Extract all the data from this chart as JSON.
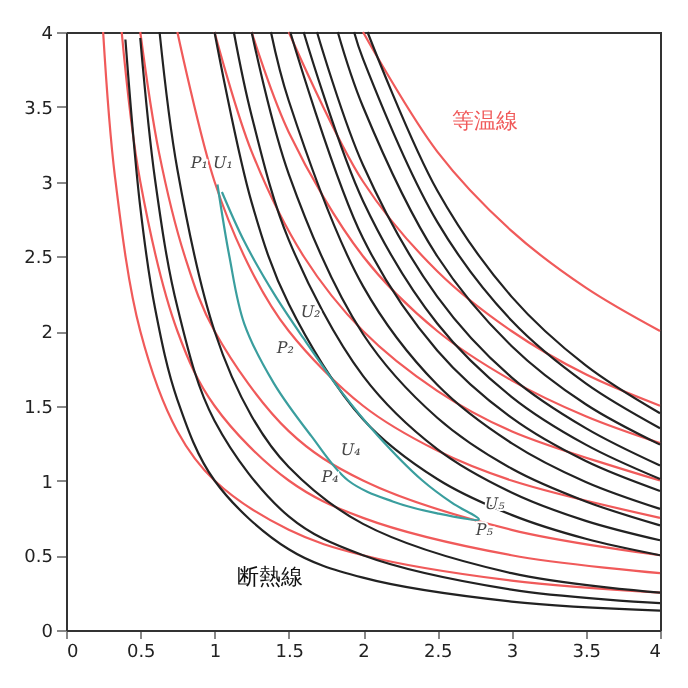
{
  "chart_data": {
    "type": "line",
    "xlim": [
      0,
      4
    ],
    "ylim": [
      0,
      4
    ],
    "xticks": [
      0,
      0.5,
      1,
      1.5,
      2,
      2.5,
      3,
      3.5,
      4
    ],
    "yticks": [
      0,
      0.5,
      1,
      1.5,
      2,
      2.5,
      3,
      3.5,
      4
    ],
    "series": [
      {
        "color": "#f05a5a",
        "x": [
          0.25,
          0.33,
          0.5,
          0.75,
          1,
          1.5,
          2,
          3,
          4
        ],
        "values": [
          4,
          3.03,
          2,
          1.33,
          1,
          0.67,
          0.5,
          0.33,
          0.25
        ]
      },
      {
        "color": "#f05a5a",
        "x": [
          0.375,
          0.5,
          0.75,
          1,
          1.5,
          2,
          3,
          4
        ],
        "values": [
          4,
          3,
          2,
          1.5,
          1,
          0.75,
          0.5,
          0.38
        ]
      },
      {
        "color": "#f05a5a",
        "x": [
          0.5,
          0.625,
          0.8,
          1,
          1.5,
          2,
          3,
          4
        ],
        "values": [
          4,
          3.2,
          2.5,
          2,
          1.33,
          1,
          0.67,
          0.5
        ]
      },
      {
        "color": "#f05a5a",
        "x": [
          0.75,
          1,
          1.25,
          1.5,
          2,
          2.5,
          3,
          4
        ],
        "values": [
          4,
          3,
          2.4,
          2,
          1.5,
          1.2,
          1,
          0.75
        ]
      },
      {
        "color": "#f05a5a",
        "x": [
          1,
          1.25,
          1.6,
          2,
          2.5,
          3,
          4
        ],
        "values": [
          4,
          3.2,
          2.5,
          2,
          1.6,
          1.33,
          1
        ]
      },
      {
        "color": "#f05a5a",
        "x": [
          1.25,
          1.5,
          2,
          2.5,
          3,
          3.5,
          4
        ],
        "values": [
          4,
          3.33,
          2.5,
          2,
          1.67,
          1.43,
          1.25
        ]
      },
      {
        "color": "#f05a5a",
        "x": [
          1.5,
          2,
          2.5,
          3,
          3.5,
          4
        ],
        "values": [
          4,
          3,
          2.4,
          2,
          1.71,
          1.5
        ]
      },
      {
        "color": "#f05a5a",
        "x": [
          2,
          2.5,
          3,
          3.5,
          4
        ],
        "values": [
          4,
          3.2,
          2.67,
          2.29,
          2
        ]
      },
      {
        "color": "#222222",
        "x": [
          0.4,
          0.5,
          0.6,
          0.75,
          1,
          1.5,
          2,
          3,
          4
        ],
        "values": [
          3.95,
          2.83,
          2.15,
          1.54,
          1,
          0.54,
          0.35,
          0.19,
          0.13
        ]
      },
      {
        "color": "#222222",
        "x": [
          0.5,
          0.6,
          0.75,
          1,
          1.5,
          2,
          3,
          4
        ],
        "values": [
          3.96,
          3.01,
          2.16,
          1.4,
          0.76,
          0.5,
          0.27,
          0.18
        ]
      },
      {
        "color": "#222222",
        "x": [
          0.63,
          0.75,
          1,
          1.25,
          1.5,
          2,
          3,
          4
        ],
        "values": [
          4,
          3.08,
          2,
          1.43,
          1.09,
          0.71,
          0.38,
          0.25
        ]
      },
      {
        "color": "#222222",
        "x": [
          1,
          1.25,
          1.5,
          2,
          2.5,
          3,
          3.5,
          4
        ],
        "values": [
          4,
          2.86,
          2.18,
          1.41,
          1.01,
          0.77,
          0.61,
          0.5
        ]
      },
      {
        "color": "#222222",
        "x": [
          1.13,
          1.25,
          1.5,
          2,
          2.5,
          3,
          3.5,
          4
        ],
        "values": [
          4,
          3.44,
          2.61,
          1.7,
          1.21,
          0.92,
          0.73,
          0.6
        ]
      },
      {
        "color": "#222222",
        "x": [
          1.25,
          1.5,
          2,
          2.5,
          3,
          3.5,
          4
        ],
        "values": [
          4,
          3.05,
          1.98,
          1.42,
          1.08,
          0.86,
          0.7
        ]
      },
      {
        "color": "#222222",
        "x": [
          1.38,
          1.5,
          2,
          2.5,
          3,
          3.5,
          4
        ],
        "values": [
          4,
          3.54,
          2.3,
          1.64,
          1.25,
          0.99,
          0.81
        ]
      },
      {
        "color": "#222222",
        "x": [
          1.51,
          2,
          2.5,
          3,
          3.5,
          4
        ],
        "values": [
          4,
          2.62,
          1.87,
          1.42,
          1.13,
          0.93
        ]
      },
      {
        "color": "#222222",
        "x": [
          1.6,
          2,
          2.5,
          3,
          3.5,
          4
        ],
        "values": [
          4,
          2.87,
          2.05,
          1.56,
          1.24,
          1.01
        ]
      },
      {
        "color": "#222222",
        "x": [
          1.69,
          2,
          2.5,
          3,
          3.5,
          4
        ],
        "values": [
          4,
          3.11,
          2.23,
          1.69,
          1.35,
          1.1
        ]
      },
      {
        "color": "#222222",
        "x": [
          1.83,
          2,
          2.5,
          3,
          3.5,
          4
        ],
        "values": [
          4,
          3.5,
          2.5,
          1.9,
          1.51,
          1.24
        ]
      },
      {
        "color": "#222222",
        "x": [
          1.94,
          2,
          2.5,
          3,
          3.5,
          4
        ],
        "values": [
          4,
          3.82,
          2.73,
          2.07,
          1.65,
          1.35
        ]
      },
      {
        "color": "#222222",
        "x": [
          2.03,
          2.5,
          3,
          3.5,
          4
        ],
        "values": [
          4,
          2.94,
          2.23,
          1.77,
          1.45
        ]
      },
      {
        "color": "#3a9e9e",
        "x": [
          1.02,
          1.1,
          1.2,
          1.4,
          1.65,
          1.9,
          2.2,
          2.5,
          2.78,
          2.6,
          2.4,
          2.1,
          1.85,
          1.6,
          1.4,
          1.2,
          1.05
        ],
        "values": [
          2.98,
          2.5,
          2.05,
          1.65,
          1.3,
          1.0,
          0.86,
          0.78,
          0.74,
          0.85,
          1.0,
          1.3,
          1.6,
          1.95,
          2.25,
          2.6,
          2.93
        ]
      }
    ],
    "annotations": [
      "P₁ U₁",
      "U₂",
      "P₂",
      "U₄",
      "P₄",
      "U₅",
      "P₅",
      "等温線",
      "断熱線"
    ]
  }
}
